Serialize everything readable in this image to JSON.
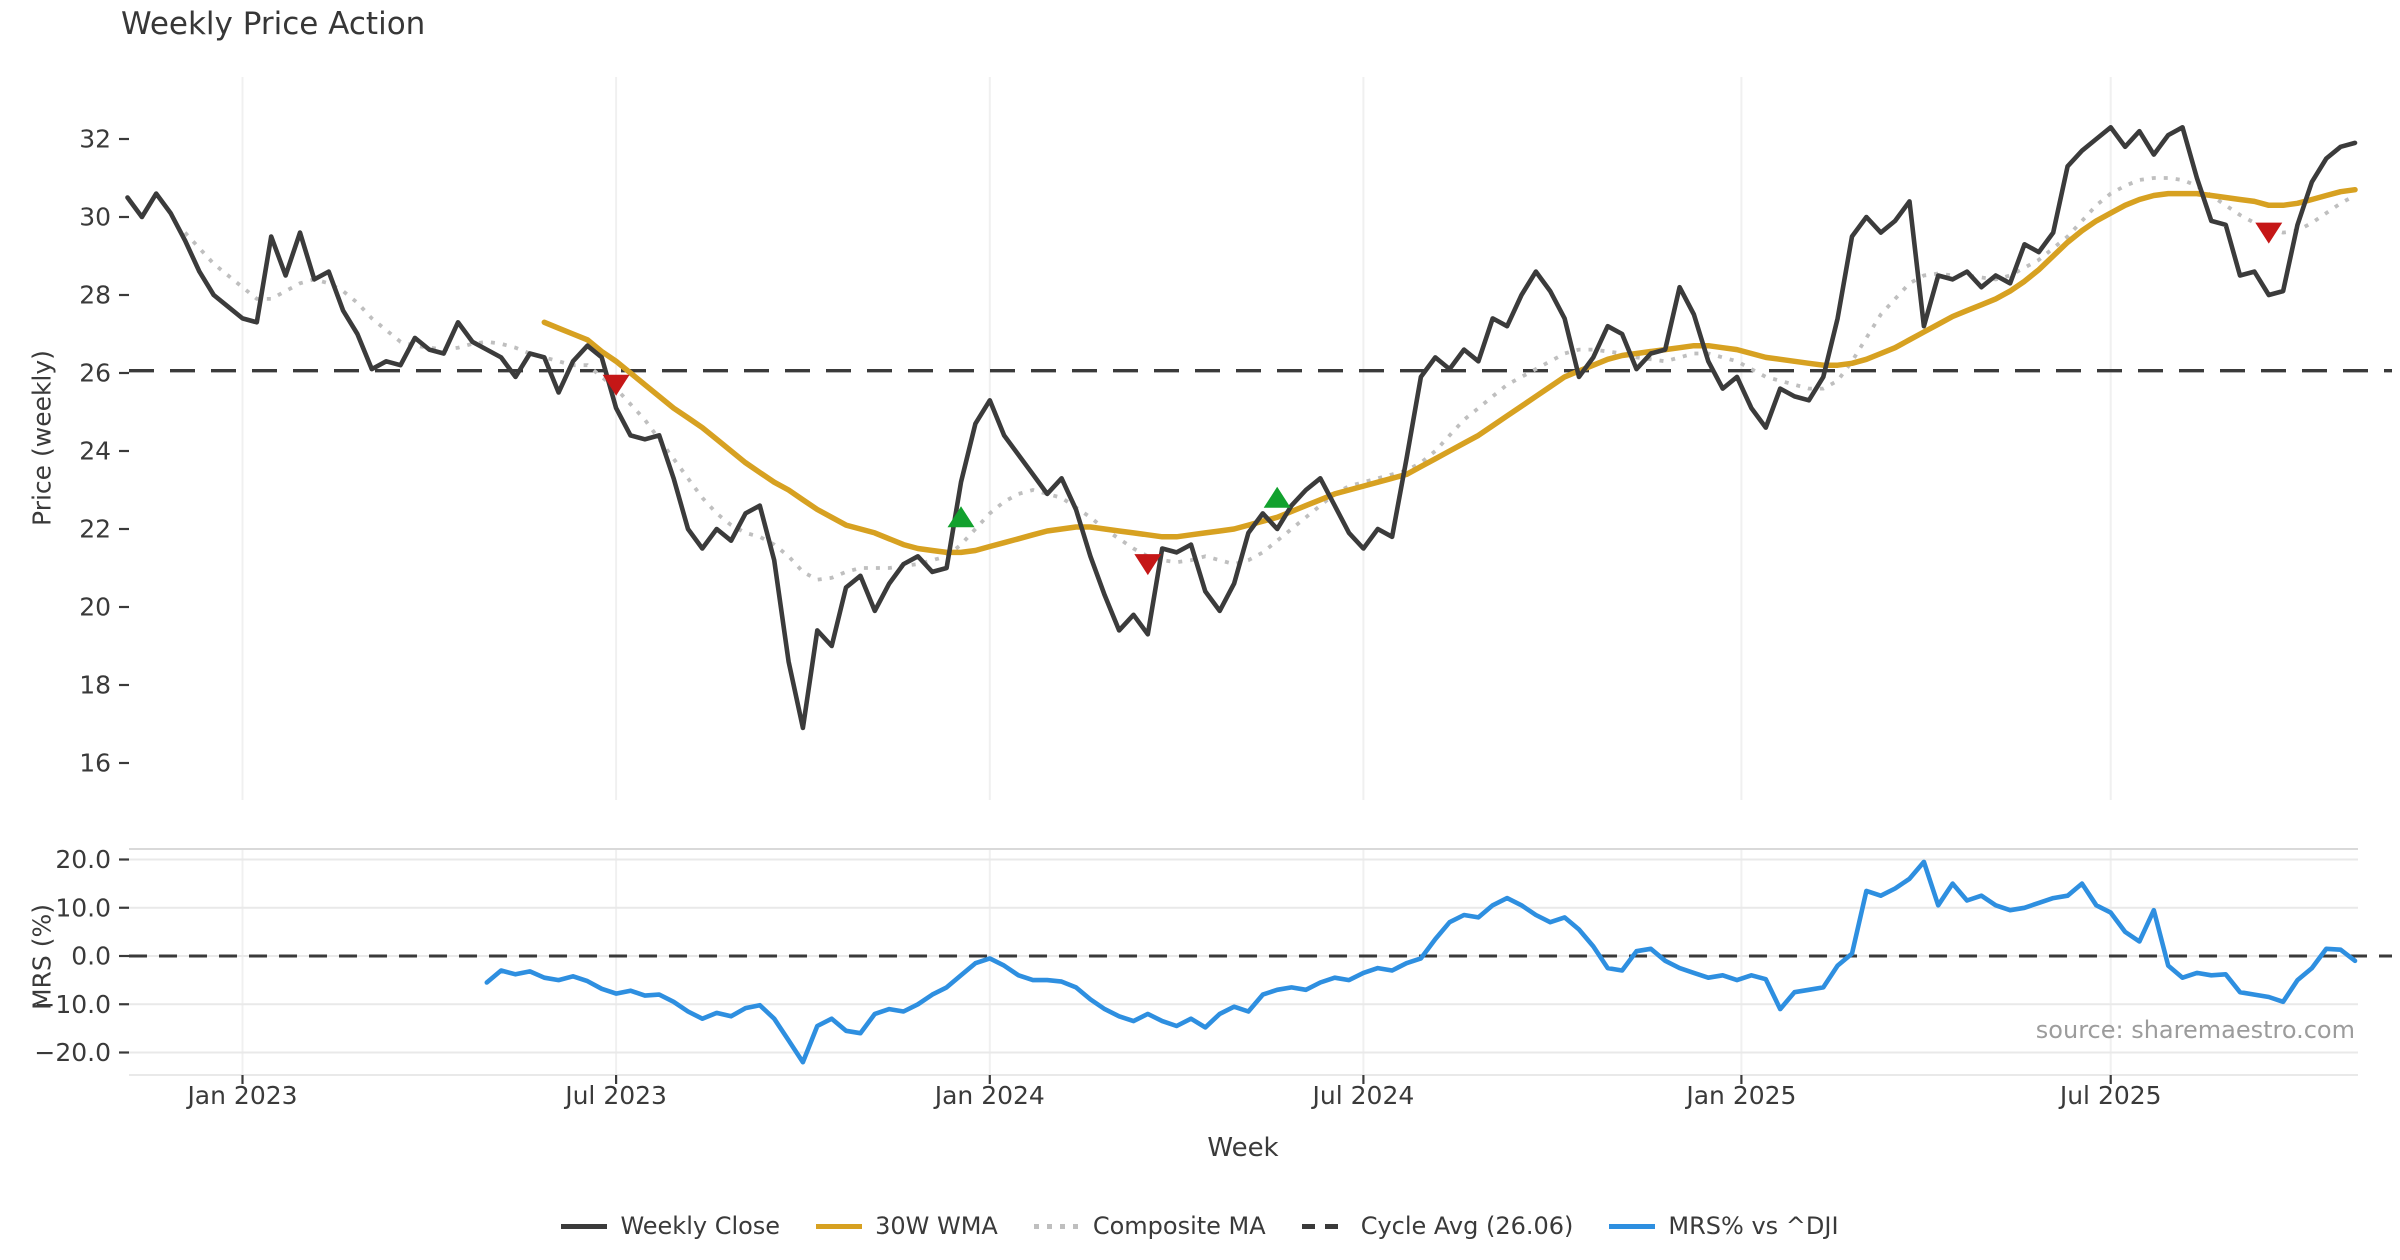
{
  "title": "Weekly Price Action",
  "source_note": "source: sharemaestro.com",
  "colors": {
    "close": "#3b3b3b",
    "wma30": "#d7a121",
    "composite": "#bfbfbf",
    "cycle_avg": "#3a3a3a",
    "mrs": "#2e8fe0",
    "sell_marker": "#c51717",
    "buy_marker": "#12a12e",
    "grid_vertical": "#f0f0f0",
    "grid_horizontal": "#e9e9e9",
    "panel_spine": "#d9d9d9",
    "tick_text": "#3a3a3a",
    "source_text": "#9c9c9c"
  },
  "chart_data": [
    {
      "type": "line",
      "panel": "price",
      "title": "Weekly Price Action",
      "ylabel": "Price (weekly)",
      "xlabel": "Week",
      "ylim": [
        16,
        33.6
      ],
      "yticks": [
        [
          32,
          "32"
        ],
        [
          30,
          "30"
        ],
        [
          28,
          "28"
        ],
        [
          26,
          "26"
        ],
        [
          24,
          "24"
        ],
        [
          22,
          "22"
        ],
        [
          20,
          "20"
        ],
        [
          18,
          "18"
        ],
        [
          16,
          "16"
        ]
      ],
      "x_ticks": [
        {
          "label": "Jan 2023",
          "week_index": 8
        },
        {
          "label": "Jul 2023",
          "week_index": 34
        },
        {
          "label": "Jan 2024",
          "week_index": 60
        },
        {
          "label": "Jul 2024",
          "week_index": 86
        },
        {
          "label": "Jan 2025",
          "week_index": 112.3
        },
        {
          "label": "Jul 2025",
          "week_index": 138
        }
      ],
      "cycle_avg": 26.06,
      "grid": "vertical-only",
      "legend_position": "bottom-center",
      "series": [
        {
          "name": "Weekly Close",
          "start_index": 0,
          "values": [
            30.5,
            30.0,
            30.6,
            30.1,
            29.4,
            28.6,
            28.0,
            27.7,
            27.4,
            27.3,
            29.5,
            28.5,
            29.6,
            28.4,
            28.6,
            27.6,
            27.0,
            26.1,
            26.3,
            26.2,
            26.9,
            26.6,
            26.5,
            27.3,
            26.8,
            26.6,
            26.4,
            25.9,
            26.5,
            26.4,
            25.5,
            26.3,
            26.7,
            26.4,
            25.1,
            24.4,
            24.3,
            24.4,
            23.3,
            22.0,
            21.5,
            22.0,
            21.7,
            22.4,
            22.6,
            21.2,
            18.6,
            16.9,
            19.4,
            19.0,
            20.5,
            20.8,
            19.9,
            20.6,
            21.1,
            21.3,
            20.9,
            21.0,
            23.2,
            24.7,
            25.3,
            24.4,
            23.9,
            23.4,
            22.9,
            23.3,
            22.5,
            21.3,
            20.3,
            19.4,
            19.8,
            19.3,
            21.5,
            21.4,
            21.6,
            20.4,
            19.9,
            20.6,
            21.9,
            22.4,
            22.0,
            22.6,
            23.0,
            23.3,
            22.6,
            21.9,
            21.5,
            22.0,
            21.8,
            23.8,
            25.9,
            26.4,
            26.1,
            26.6,
            26.3,
            27.4,
            27.2,
            28.0,
            28.6,
            28.1,
            27.4,
            25.9,
            26.4,
            27.2,
            27.0,
            26.1,
            26.5,
            26.6,
            28.2,
            27.5,
            26.3,
            25.6,
            25.9,
            25.1,
            24.6,
            25.6,
            25.4,
            25.3,
            25.9,
            27.4,
            29.5,
            30.0,
            29.6,
            29.9,
            30.4,
            27.2,
            28.5,
            28.4,
            28.6,
            28.2,
            28.5,
            28.3,
            29.3,
            29.1,
            29.6,
            31.3,
            31.7,
            32.0,
            32.3,
            31.8,
            32.2,
            31.6,
            32.1,
            32.3,
            31.0,
            29.9,
            29.8,
            28.5,
            28.6,
            28.0,
            28.1,
            29.8,
            30.9,
            31.5,
            31.8,
            31.9
          ]
        },
        {
          "name": "30W WMA",
          "start_index": 29,
          "values": [
            27.3,
            27.15,
            27.0,
            26.85,
            26.55,
            26.3,
            26.0,
            25.7,
            25.4,
            25.1,
            24.85,
            24.6,
            24.3,
            24.0,
            23.7,
            23.45,
            23.2,
            23.0,
            22.75,
            22.5,
            22.3,
            22.1,
            22.0,
            21.9,
            21.75,
            21.6,
            21.5,
            21.45,
            21.4,
            21.4,
            21.45,
            21.55,
            21.65,
            21.75,
            21.85,
            21.95,
            22.0,
            22.05,
            22.05,
            22.0,
            21.95,
            21.9,
            21.85,
            21.8,
            21.8,
            21.85,
            21.9,
            21.95,
            22.0,
            22.1,
            22.2,
            22.3,
            22.45,
            22.6,
            22.75,
            22.9,
            23.0,
            23.1,
            23.2,
            23.3,
            23.4,
            23.6,
            23.8,
            24.0,
            24.2,
            24.4,
            24.65,
            24.9,
            25.15,
            25.4,
            25.65,
            25.9,
            26.05,
            26.2,
            26.35,
            26.45,
            26.5,
            26.55,
            26.6,
            26.65,
            26.7,
            26.7,
            26.65,
            26.6,
            26.5,
            26.4,
            26.35,
            26.3,
            26.25,
            26.2,
            26.2,
            26.25,
            26.35,
            26.5,
            26.65,
            26.85,
            27.05,
            27.25,
            27.45,
            27.6,
            27.75,
            27.9,
            28.1,
            28.35,
            28.65,
            29.0,
            29.35,
            29.65,
            29.9,
            30.1,
            30.3,
            30.45,
            30.55,
            30.6,
            30.6,
            30.6,
            30.55,
            30.5,
            30.45,
            30.4,
            30.3,
            30.3,
            30.35,
            30.45,
            30.55,
            30.65,
            30.7
          ]
        },
        {
          "name": "Composite MA",
          "start_index": 4,
          "values": [
            29.6,
            29.2,
            28.8,
            28.5,
            28.2,
            27.9,
            27.9,
            28.1,
            28.3,
            28.4,
            28.3,
            28.1,
            27.8,
            27.4,
            27.1,
            26.8,
            26.7,
            26.65,
            26.6,
            26.65,
            26.75,
            26.8,
            26.75,
            26.65,
            26.5,
            26.4,
            26.3,
            26.2,
            26.2,
            25.9,
            25.6,
            25.2,
            24.8,
            24.3,
            23.8,
            23.3,
            22.8,
            22.4,
            22.1,
            21.9,
            21.8,
            21.6,
            21.3,
            20.9,
            20.7,
            20.75,
            20.9,
            21.0,
            21.0,
            21.0,
            21.05,
            21.1,
            21.2,
            21.3,
            21.6,
            22.0,
            22.4,
            22.7,
            22.9,
            23.0,
            22.9,
            22.8,
            22.55,
            22.3,
            22.0,
            21.75,
            21.5,
            21.3,
            21.2,
            21.15,
            21.2,
            21.3,
            21.2,
            21.1,
            21.2,
            21.4,
            21.7,
            22.0,
            22.3,
            22.6,
            22.9,
            23.1,
            23.2,
            23.3,
            23.4,
            23.5,
            23.7,
            24.0,
            24.4,
            24.8,
            25.1,
            25.4,
            25.7,
            25.9,
            26.1,
            26.3,
            26.5,
            26.6,
            26.6,
            26.55,
            26.5,
            26.4,
            26.35,
            26.3,
            26.4,
            26.5,
            26.5,
            26.4,
            26.3,
            26.1,
            25.9,
            25.8,
            25.7,
            25.6,
            25.6,
            25.8,
            26.3,
            26.9,
            27.5,
            27.9,
            28.3,
            28.5,
            28.55,
            28.5,
            28.5,
            28.45,
            28.4,
            28.5,
            28.7,
            28.9,
            29.2,
            29.5,
            29.9,
            30.3,
            30.6,
            30.8,
            30.95,
            31.0,
            31.0,
            30.95,
            30.8,
            30.55,
            30.3,
            30.05,
            29.85,
            29.7,
            29.6,
            29.65,
            29.85,
            30.1,
            30.35,
            30.55
          ]
        }
      ],
      "markers": {
        "sell": [
          {
            "week_index": 34,
            "price": 25.7
          },
          {
            "week_index": 71,
            "price": 21.1
          },
          {
            "week_index": 149,
            "price": 29.6
          }
        ],
        "buy": [
          {
            "week_index": 58,
            "price": 22.3
          },
          {
            "week_index": 80,
            "price": 22.8
          }
        ]
      }
    },
    {
      "type": "line",
      "panel": "mrs",
      "ylabel": "MRS (%)",
      "ylim": [
        -24,
        21.5
      ],
      "yticks": [
        [
          20,
          "20.0"
        ],
        [
          10,
          "10.0"
        ],
        [
          0,
          "0.0"
        ],
        [
          -10,
          "−10.0"
        ],
        [
          -20,
          "−20.0"
        ]
      ],
      "zero_line": 0,
      "grid": "both",
      "series": [
        {
          "name": "MRS% vs ^DJI",
          "start_index": 25,
          "values": [
            -5.5,
            -3.0,
            -3.8,
            -3.2,
            -4.5,
            -5.0,
            -4.2,
            -5.2,
            -6.8,
            -7.8,
            -7.2,
            -8.2,
            -8.0,
            -9.5,
            -11.5,
            -13.0,
            -11.8,
            -12.5,
            -10.8,
            -10.2,
            -13.0,
            -17.5,
            -22.0,
            -14.5,
            -13.0,
            -15.5,
            -16.0,
            -12.0,
            -11.0,
            -11.5,
            -10.0,
            -8.0,
            -6.5,
            -4.0,
            -1.5,
            -0.5,
            -2.0,
            -4.0,
            -5.0,
            -5.0,
            -5.3,
            -6.5,
            -9.0,
            -11.0,
            -12.5,
            -13.5,
            -12.0,
            -13.5,
            -14.5,
            -13.0,
            -14.8,
            -12.0,
            -10.5,
            -11.5,
            -8.0,
            -7.0,
            -6.5,
            -7.0,
            -5.5,
            -4.5,
            -5.0,
            -3.5,
            -2.5,
            -3.0,
            -1.5,
            -0.5,
            3.5,
            7.0,
            8.5,
            8.0,
            10.5,
            12.0,
            10.5,
            8.5,
            7.0,
            8.0,
            5.5,
            2.0,
            -2.5,
            -3.0,
            1.0,
            1.5,
            -1.0,
            -2.5,
            -3.5,
            -4.5,
            -4.0,
            -5.0,
            -4.0,
            -4.8,
            -11.0,
            -7.5,
            -7.0,
            -6.5,
            -2.0,
            0.5,
            13.5,
            12.5,
            14.0,
            16.0,
            19.5,
            10.5,
            15.0,
            11.5,
            12.5,
            10.5,
            9.5,
            10.0,
            11.0,
            12.0,
            12.5,
            15.0,
            10.5,
            9.0,
            5.0,
            3.0,
            9.5,
            -2.0,
            -4.5,
            -3.5,
            -4.0,
            -3.8,
            -7.5,
            -8.0,
            -8.5,
            -9.5,
            -5.0,
            -2.5,
            1.5,
            1.3,
            -1.0
          ]
        }
      ]
    }
  ],
  "legend": [
    {
      "label": "Weekly Close",
      "style": "solid",
      "color": "#3b3b3b"
    },
    {
      "label": "30W WMA",
      "style": "solid",
      "color": "#d7a121"
    },
    {
      "label": "Composite MA",
      "style": "dotted",
      "color": "#bfbfbf"
    },
    {
      "label": "Cycle Avg (26.06)",
      "style": "dashed",
      "color": "#3a3a3a"
    },
    {
      "label": "MRS% vs ^DJI",
      "style": "solid",
      "color": "#2e8fe0"
    }
  ]
}
